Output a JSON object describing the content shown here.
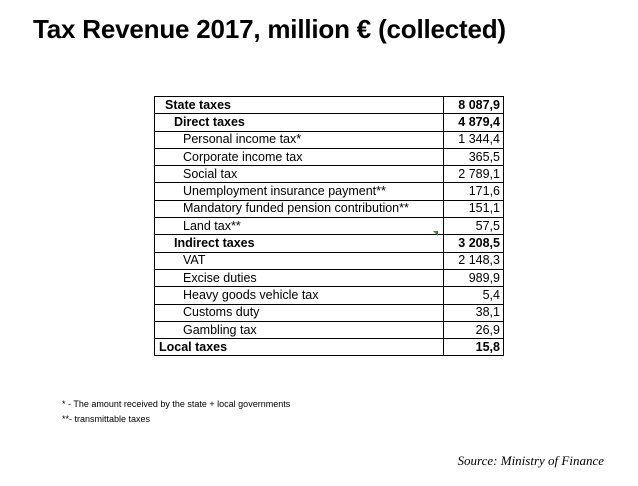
{
  "title": "Tax Revenue 2017, million € (collected)",
  "table": {
    "rows": [
      {
        "label": "State taxes",
        "value": "8 087,9",
        "level": 0
      },
      {
        "label": "Direct taxes",
        "value": "4 879,4",
        "level": 1
      },
      {
        "label": "Personal income tax*",
        "value": "1 344,4",
        "level": 2
      },
      {
        "label": "Corporate income tax",
        "value": "365,5",
        "level": 2
      },
      {
        "label": "Social tax",
        "value": "2 789,1",
        "level": 2
      },
      {
        "label": "Unemployment insurance payment**",
        "value": "171,6",
        "level": 2
      },
      {
        "label": "Mandatory funded pension contribution**",
        "value": "151,1",
        "level": 2
      },
      {
        "label": "Land tax**",
        "value": "57,5",
        "level": 2
      },
      {
        "label": "Indirect taxes",
        "value": "3 208,5",
        "level": 1
      },
      {
        "label": "VAT",
        "value": "2 148,3",
        "level": 2
      },
      {
        "label": "Excise duties",
        "value": "989,9",
        "level": 2
      },
      {
        "label": "Heavy goods vehicle tax",
        "value": "5,4",
        "level": 2
      },
      {
        "label": "Customs duty",
        "value": "38,1",
        "level": 2
      },
      {
        "label": "Gambling tax",
        "value": "26,9",
        "level": 2
      },
      {
        "label": "Local taxes",
        "value": "15,8",
        "level": 0
      }
    ]
  },
  "notes": {
    "note1": "* - The amount received by the state + local governments",
    "note2": "**- transmittable taxes"
  },
  "source": "Source: Ministry of Finance",
  "colors": {
    "marker": "#2e8b2e"
  }
}
